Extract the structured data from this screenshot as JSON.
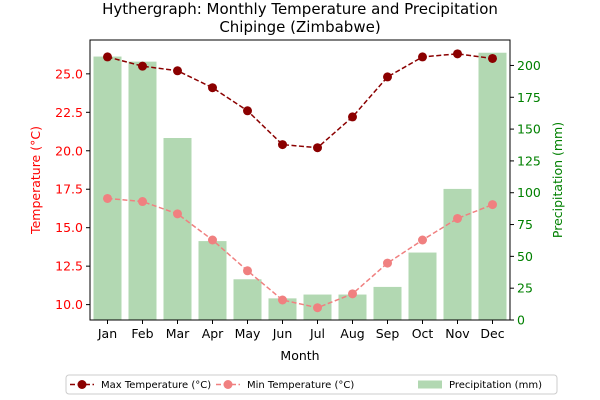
{
  "chart_data": {
    "type": "line",
    "title": "Hythergraph: Monthly Temperature and Precipitation",
    "subtitle": "Chipinge (Zimbabwe)",
    "xlabel": "Month",
    "ylabel_left": "Temperature (°C)",
    "ylabel_right": "Precipitation (mm)",
    "categories": [
      "Jan",
      "Feb",
      "Mar",
      "Apr",
      "May",
      "Jun",
      "Jul",
      "Aug",
      "Sep",
      "Oct",
      "Nov",
      "Dec"
    ],
    "y_left_lim": [
      9.0,
      27.2
    ],
    "y_left_ticks": [
      "10.0",
      "12.5",
      "15.0",
      "17.5",
      "20.0",
      "22.5",
      "25.0"
    ],
    "y_right_lim": [
      0,
      220
    ],
    "y_right_ticks": [
      "0",
      "25",
      "50",
      "75",
      "100",
      "125",
      "150",
      "175",
      "200"
    ],
    "grid": false,
    "legend_position": "bottom",
    "series": [
      {
        "name": "Max Temperature (°C)",
        "kind": "line",
        "axis": "left",
        "color": "#8b0000",
        "linestyle": "dashed",
        "marker": "circle",
        "values": [
          26.1,
          25.5,
          25.2,
          24.1,
          22.6,
          20.4,
          20.2,
          22.2,
          24.8,
          26.1,
          26.3,
          26.0
        ]
      },
      {
        "name": "Min Temperature (°C)",
        "kind": "line",
        "axis": "left",
        "color": "#f08080",
        "linestyle": "dashed",
        "marker": "circle",
        "values": [
          16.9,
          16.7,
          15.9,
          14.2,
          12.2,
          10.3,
          9.8,
          10.7,
          12.7,
          14.2,
          15.6,
          16.5
        ]
      },
      {
        "name": "Precipitation (mm)",
        "kind": "bar",
        "axis": "right",
        "color": "#b2d8b2",
        "values": [
          207,
          203,
          143,
          62,
          32,
          17,
          20,
          20,
          26,
          53,
          103,
          210
        ]
      }
    ]
  },
  "colors": {
    "left_axis": "#ff0000",
    "right_axis": "#008000",
    "text": "#000000"
  }
}
